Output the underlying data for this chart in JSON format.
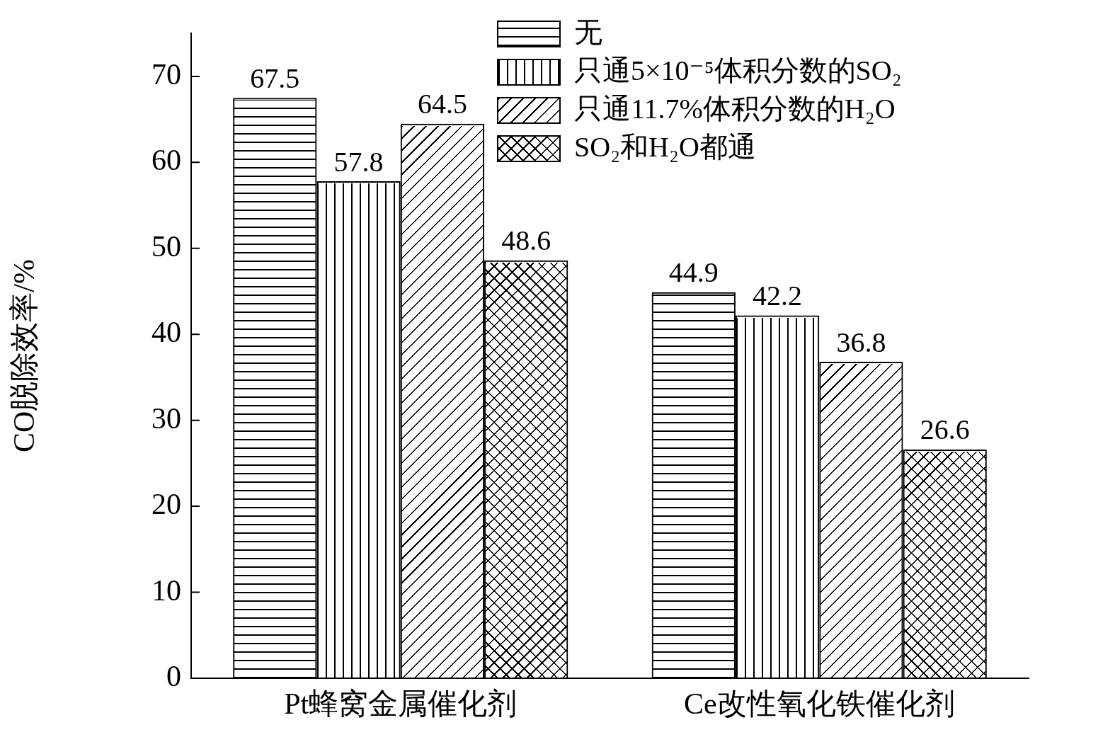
{
  "chart_data": {
    "type": "bar",
    "ylabel": "CO脱除效率/%",
    "categories": [
      "Pt蜂窝金属催化剂",
      "Ce改性氧化铁催化剂"
    ],
    "series": [
      {
        "name": "无",
        "color": "#ffffff",
        "values": [
          67.5,
          44.9
        ]
      },
      {
        "name": "只通5×10⁻⁵体积分数的SO₂",
        "color": "#ffffff",
        "values": [
          57.8,
          42.2
        ]
      },
      {
        "name": "只通11.7%体积分数的H₂O",
        "color": "#ffffff",
        "values": [
          64.5,
          36.8
        ]
      },
      {
        "name": "SO₂和H₂O都通",
        "color": "#ffffff",
        "values": [
          48.6,
          26.6
        ]
      }
    ],
    "ylim": [
      0,
      75
    ],
    "yticks": [
      0,
      10,
      20,
      30,
      40,
      50,
      60,
      70
    ],
    "data_labels": true,
    "grid": false,
    "legend": "top right"
  }
}
